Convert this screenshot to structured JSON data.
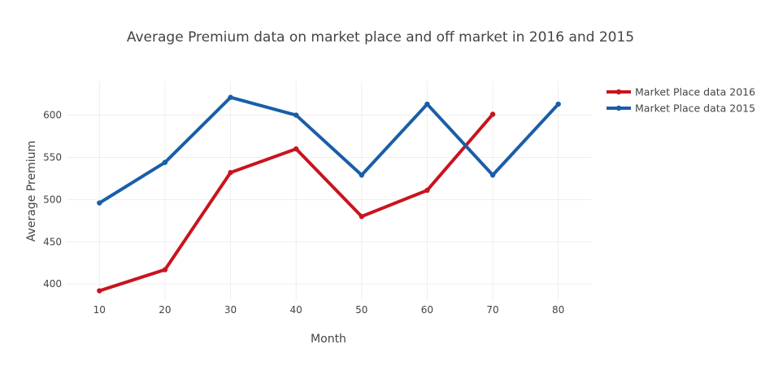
{
  "chart_data": {
    "type": "line",
    "title": "Average Premium data on market place and off market in 2016 and 2015",
    "xlabel": "Month",
    "ylabel": "Average Premium",
    "xlim": [
      5,
      85
    ],
    "ylim": [
      380,
      640
    ],
    "x_ticks": [
      10,
      20,
      30,
      40,
      50,
      60,
      70,
      80
    ],
    "y_ticks": [
      400,
      450,
      500,
      550,
      600
    ],
    "grid": true,
    "legend_position": "top-right",
    "series": [
      {
        "name": "Market Place data 2016",
        "color": "#c8141e",
        "x": [
          10,
          20,
          30,
          40,
          50,
          60,
          70
        ],
        "y": [
          392,
          417,
          532,
          560,
          480,
          511,
          601
        ]
      },
      {
        "name": "Market Place data 2015",
        "color": "#1a5ea8",
        "x": [
          10,
          20,
          30,
          40,
          50,
          60,
          70,
          80
        ],
        "y": [
          496,
          544,
          621,
          600,
          529,
          613,
          529,
          613
        ]
      }
    ]
  }
}
